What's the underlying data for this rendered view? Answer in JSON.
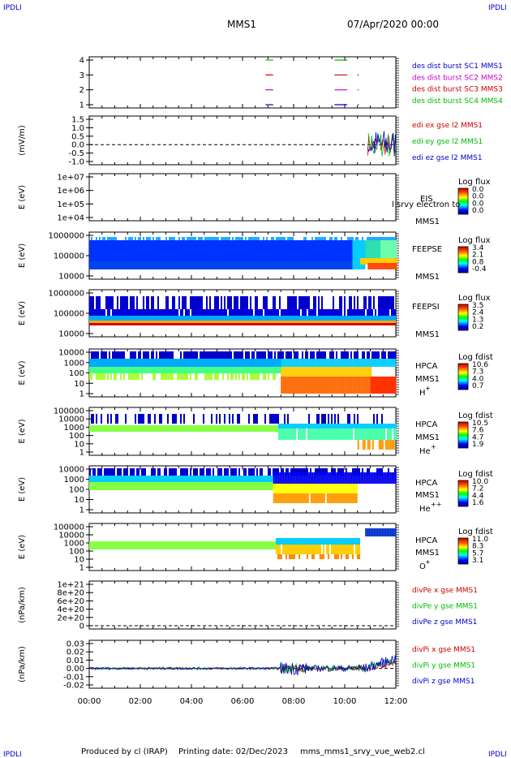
{
  "header": {
    "corner_tl": "IPDLI",
    "corner_tr": "IPDLI",
    "corner_bl": "IPDLI",
    "corner_br": "IPDLI",
    "spacecraft": "MMS1",
    "datetime": "07/Apr/2020 00:00"
  },
  "footer": {
    "produced_by": "Produced by cl (IRAP)",
    "printing_date": "Printing date: 02/Dec/2023",
    "script": "mms_mms1_srvy_vue_web2.cl"
  },
  "colors": {
    "blue": "#0000cc",
    "magenta": "#cc00cc",
    "red": "#cc0000",
    "green": "#00bb00"
  },
  "chart_data": [
    {
      "id": "burst",
      "type": "line",
      "yticks": [
        "4",
        "3",
        "2",
        "1"
      ],
      "legend": [
        {
          "text": "des dist burst SC1 MMS1",
          "color": "#0000cc"
        },
        {
          "text": "des dist burst SC2 MMS2",
          "color": "#cc00cc"
        },
        {
          "text": "des dist burst SC3 MMS3",
          "color": "#cc0000"
        },
        {
          "text": "des dist burst SC4 MMS4",
          "color": "#00bb00"
        }
      ],
      "segments": [
        {
          "sc": 4,
          "color": "#00bb00",
          "x": [
            [
              6.9,
              7.2
            ],
            [
              9.6,
              10.1
            ]
          ]
        },
        {
          "sc": 3,
          "color": "#cc0000",
          "x": [
            [
              6.9,
              7.2
            ],
            [
              9.6,
              10.1
            ],
            [
              10.5,
              10.55
            ]
          ]
        },
        {
          "sc": 2,
          "color": "#cc00cc",
          "x": [
            [
              6.9,
              7.2
            ],
            [
              9.6,
              10.1
            ],
            [
              10.5,
              10.55
            ]
          ]
        },
        {
          "sc": 1,
          "color": "#0000cc",
          "x": [
            [
              6.9,
              7.2
            ],
            [
              9.6,
              10.1
            ],
            [
              10.5,
              10.55
            ]
          ]
        }
      ]
    },
    {
      "id": "edi",
      "type": "line",
      "ylabel": "(mV/m)",
      "yticks": [
        "1.5",
        "1.0",
        "0.5",
        "0.0",
        "-0.5",
        "-1.0"
      ],
      "legend": [
        {
          "text": "edi ex gse l2 MMS1",
          "color": "#cc0000"
        },
        {
          "text": "edi ey gse l2 MMS1",
          "color": "#00bb00"
        },
        {
          "text": "edi ez gse l2 MMS1",
          "color": "#0000cc"
        }
      ],
      "ylim": [
        -1.0,
        1.5
      ],
      "active_from_hour": 10.9
    },
    {
      "id": "eis",
      "type": "heatmap",
      "ylabel": "E (eV)",
      "yticks": [
        "1e+07",
        "1e+06",
        "1e+05",
        "1e+04"
      ],
      "instrument": "EIS",
      "sc": "MMS1",
      "overlay": "l srvy electron to",
      "cbar_title": "Log flux",
      "cbar_ticks": [
        "0.0",
        "0.0",
        "0.0",
        "0.0"
      ]
    },
    {
      "id": "feepse",
      "type": "heatmap",
      "ylabel": "E (eV)",
      "yticks": [
        "1000000",
        "100000",
        "10000"
      ],
      "instrument": "FEEPSE",
      "sc": "MMS1",
      "cbar_title": "Log flux",
      "cbar_ticks": [
        "3.4",
        "2.1",
        "0.8",
        "-0.4"
      ]
    },
    {
      "id": "feepsi",
      "type": "heatmap",
      "ylabel": "E (eV)",
      "yticks": [
        "1000000",
        "100000",
        "10000"
      ],
      "instrument": "FEEPSI",
      "sc": "MMS1",
      "cbar_title": "Log flux",
      "cbar_ticks": [
        "3.5",
        "2.4",
        "1.3",
        "0.2"
      ]
    },
    {
      "id": "hpca_h",
      "type": "heatmap",
      "ylabel": "E (eV)",
      "yticks": [
        "10000",
        "1000",
        "100",
        "10",
        "1"
      ],
      "instrument": "HPCA",
      "sc": "MMS1",
      "species": "H",
      "charge": "+",
      "cbar_title": "Log fdist",
      "cbar_ticks": [
        "10.6",
        "7.3",
        "4.0",
        "0.7"
      ]
    },
    {
      "id": "hpca_he",
      "type": "heatmap",
      "ylabel": "E (eV)",
      "yticks": [
        "100000",
        "10000",
        "1000",
        "100",
        "10",
        "1"
      ],
      "instrument": "HPCA",
      "sc": "MMS1",
      "species": "He",
      "charge": "+",
      "cbar_title": "Log fdist",
      "cbar_ticks": [
        "10.5",
        "7.6",
        "4.7",
        "1.9"
      ]
    },
    {
      "id": "hpca_hepp",
      "type": "heatmap",
      "ylabel": "E (eV)",
      "yticks": [
        "10000",
        "1000",
        "100",
        "10",
        "1"
      ],
      "instrument": "HPCA",
      "sc": "MMS1",
      "species": "He",
      "charge": "++",
      "cbar_title": "Log fdist",
      "cbar_ticks": [
        "10.0",
        "7.2",
        "4.4",
        "1.6"
      ]
    },
    {
      "id": "hpca_o",
      "type": "heatmap",
      "ylabel": "E (eV)",
      "yticks": [
        "100000",
        "10000",
        "1000",
        "100",
        "10",
        "1"
      ],
      "instrument": "HPCA",
      "sc": "MMS1",
      "species": "O",
      "charge": "+",
      "cbar_title": "Log fdist",
      "cbar_ticks": [
        "11.0",
        "8.3",
        "5.7",
        "3.1"
      ]
    },
    {
      "id": "divpe",
      "type": "line",
      "ylabel": "(nPa/km)",
      "yticks": [
        "1e+21",
        "8e+20",
        "6e+20",
        "4e+20",
        "2e+20",
        "0"
      ],
      "legend": [
        {
          "text": "divPe x gse MMS1",
          "color": "#cc0000"
        },
        {
          "text": "divPe y gse MMS1",
          "color": "#00bb00"
        },
        {
          "text": "divPe z gse MMS1",
          "color": "#0000cc"
        }
      ]
    },
    {
      "id": "divpi",
      "type": "line",
      "ylabel": "(nPa/km)",
      "yticks": [
        "0.03",
        "0.02",
        "0.01",
        "0.00",
        "-0.01",
        "-0.02"
      ],
      "ylim": [
        -0.02,
        0.03
      ],
      "legend": [
        {
          "text": "divPi x gse MMS1",
          "color": "#cc0000"
        },
        {
          "text": "divPi y gse MMS1",
          "color": "#00bb00"
        },
        {
          "text": "divPi z gse MMS1",
          "color": "#0000cc"
        }
      ]
    }
  ],
  "xaxis": {
    "ticks": [
      "00:00",
      "02:00",
      "04:00",
      "06:00",
      "08:00",
      "10:00",
      "12:00"
    ],
    "hours": [
      0,
      2,
      4,
      6,
      8,
      10,
      12
    ]
  }
}
